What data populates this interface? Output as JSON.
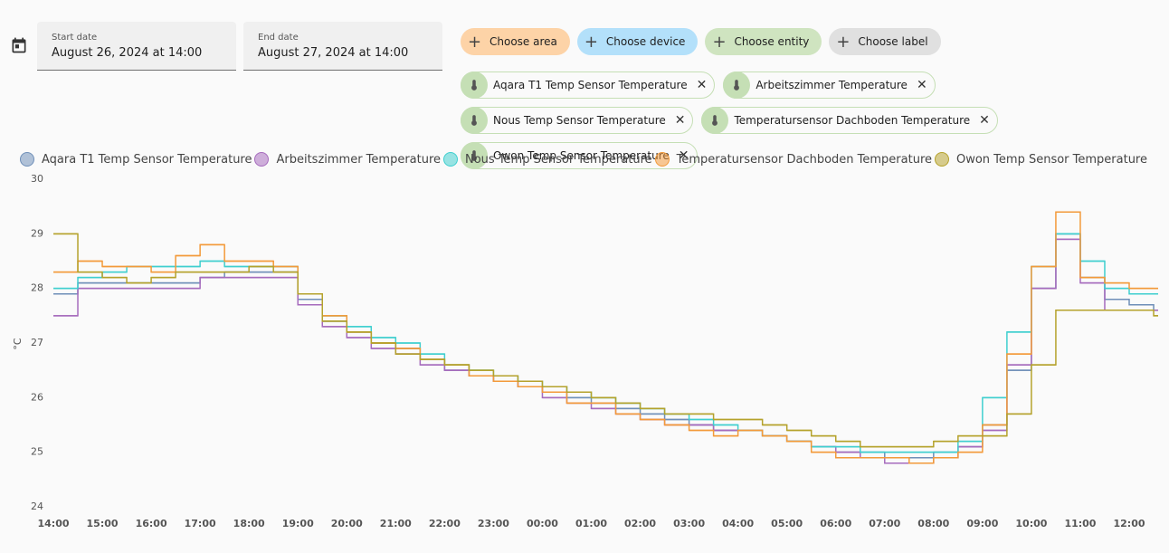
{
  "date_range": {
    "start": {
      "label": "Start date",
      "value": "August 26, 2024 at 14:00"
    },
    "end": {
      "label": "End date",
      "value": "August 27, 2024 at 14:00"
    }
  },
  "targets": {
    "buttons": [
      "Choose area",
      "Choose device",
      "Choose entity",
      "Choose label"
    ],
    "entities": [
      "Aqara T1 Temp Sensor Temperature",
      "Arbeitszimmer Temperature",
      "Nous Temp Sensor Temperature",
      "Temperatursensor Dachboden Temperature",
      "Owon Temp Sensor Temperature"
    ]
  },
  "chart_data": {
    "type": "step-line",
    "y_label": "°C",
    "x": [
      "14:00",
      "14:30",
      "15:00",
      "15:30",
      "16:00",
      "16:30",
      "17:00",
      "17:30",
      "18:00",
      "18:30",
      "19:00",
      "19:30",
      "20:00",
      "20:30",
      "21:00",
      "21:30",
      "22:00",
      "22:30",
      "23:00",
      "23:30",
      "00:00",
      "00:30",
      "01:00",
      "01:30",
      "02:00",
      "02:30",
      "03:00",
      "03:30",
      "04:00",
      "04:30",
      "05:00",
      "05:30",
      "06:00",
      "06:30",
      "07:00",
      "07:30",
      "08:00",
      "08:30",
      "09:00",
      "09:30",
      "10:00",
      "10:30",
      "11:00",
      "11:30",
      "12:00",
      "12:30"
    ],
    "xticks": [
      "14:00",
      "15:00",
      "16:00",
      "17:00",
      "18:00",
      "19:00",
      "20:00",
      "21:00",
      "22:00",
      "23:00",
      "00:00",
      "01:00",
      "02:00",
      "03:00",
      "04:00",
      "05:00",
      "06:00",
      "07:00",
      "08:00",
      "09:00",
      "10:00",
      "11:00",
      "12:00"
    ],
    "ylim": [
      24,
      30
    ],
    "yticks": [
      24,
      25,
      26,
      27,
      28,
      29,
      30
    ],
    "series": [
      {
        "name": "Aqara T1 Temp Sensor Temperature",
        "color": "#6f8fb8",
        "values": [
          27.9,
          28.1,
          28.1,
          28.1,
          28.1,
          28.1,
          28.2,
          28.3,
          28.3,
          28.3,
          27.8,
          27.4,
          27.2,
          27.0,
          26.9,
          26.7,
          26.5,
          26.4,
          26.3,
          26.2,
          26.1,
          26.0,
          25.9,
          25.8,
          25.7,
          25.6,
          25.5,
          25.4,
          25.4,
          25.3,
          25.2,
          25.1,
          25.0,
          25.0,
          24.9,
          24.9,
          25.0,
          25.1,
          25.5,
          26.5,
          28.0,
          29.0,
          28.2,
          27.8,
          27.7,
          27.6
        ]
      },
      {
        "name": "Arbeitszimmer Temperature",
        "color": "#a66bbd",
        "values": [
          27.5,
          28.0,
          28.0,
          28.0,
          28.0,
          28.0,
          28.2,
          28.2,
          28.2,
          28.2,
          27.7,
          27.3,
          27.1,
          26.9,
          26.8,
          26.6,
          26.5,
          26.4,
          26.3,
          26.2,
          26.0,
          25.9,
          25.8,
          25.7,
          25.6,
          25.5,
          25.5,
          25.4,
          25.4,
          25.3,
          25.2,
          25.1,
          25.0,
          24.9,
          24.8,
          24.8,
          24.9,
          25.1,
          25.4,
          26.6,
          28.0,
          28.9,
          28.1,
          27.6,
          27.6,
          27.6
        ]
      },
      {
        "name": "Nous Temp Sensor Temperature",
        "color": "#3fcfcf",
        "values": [
          28.0,
          28.2,
          28.3,
          28.4,
          28.4,
          28.4,
          28.5,
          28.4,
          28.4,
          28.4,
          27.9,
          27.5,
          27.3,
          27.1,
          27.0,
          26.8,
          26.6,
          26.5,
          26.4,
          26.3,
          26.2,
          26.1,
          26.0,
          25.9,
          25.8,
          25.7,
          25.6,
          25.5,
          25.4,
          25.3,
          25.2,
          25.1,
          25.1,
          25.0,
          25.0,
          25.0,
          25.0,
          25.2,
          26.0,
          27.2,
          28.4,
          29.0,
          28.5,
          28.0,
          27.9,
          27.9
        ]
      },
      {
        "name": "Temperatursensor Dachboden Temperature",
        "color": "#f39a3a",
        "values": [
          28.3,
          28.5,
          28.4,
          28.4,
          28.3,
          28.6,
          28.8,
          28.5,
          28.5,
          28.4,
          27.9,
          27.5,
          27.2,
          27.0,
          26.9,
          26.7,
          26.6,
          26.4,
          26.3,
          26.2,
          26.1,
          25.9,
          25.9,
          25.7,
          25.6,
          25.5,
          25.4,
          25.3,
          25.4,
          25.3,
          25.2,
          25.0,
          24.9,
          24.9,
          24.9,
          24.8,
          24.9,
          25.0,
          25.5,
          26.8,
          28.4,
          29.4,
          28.2,
          28.1,
          28.0,
          28.0
        ]
      },
      {
        "name": "Owon Temp Sensor Temperature",
        "color": "#b5a22c",
        "values": [
          29.0,
          28.3,
          28.2,
          28.1,
          28.2,
          28.3,
          28.3,
          28.3,
          28.4,
          28.3,
          27.9,
          27.4,
          27.2,
          27.0,
          26.8,
          26.7,
          26.6,
          26.5,
          26.4,
          26.3,
          26.2,
          26.1,
          26.0,
          25.9,
          25.8,
          25.7,
          25.7,
          25.6,
          25.6,
          25.5,
          25.4,
          25.3,
          25.2,
          25.1,
          25.1,
          25.1,
          25.2,
          25.3,
          25.3,
          25.7,
          26.6,
          27.6,
          27.6,
          27.6,
          27.6,
          27.5
        ]
      }
    ]
  }
}
